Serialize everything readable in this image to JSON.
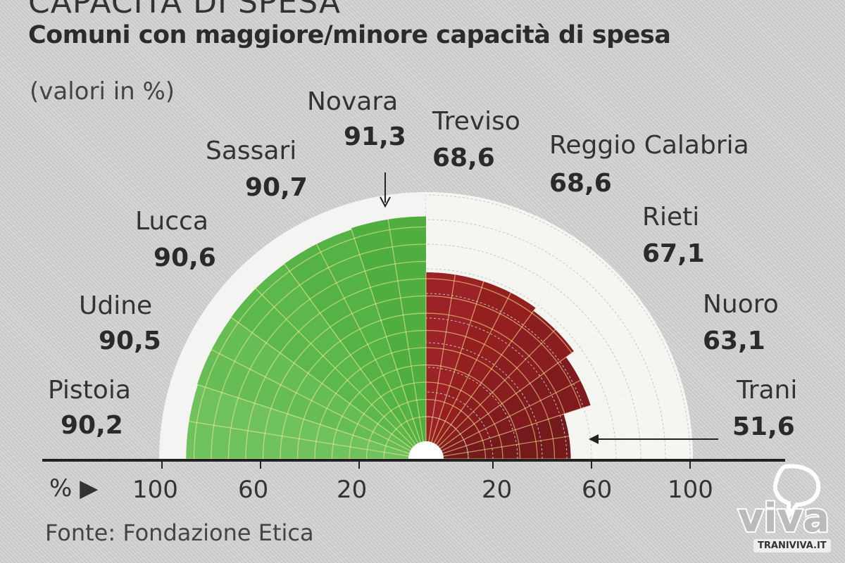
{
  "header": {
    "kicker": "CAPACITÀ DI SPESA",
    "title": "Comuni con maggiore/minore capacità di spesa",
    "subtitle": "(valori in %)"
  },
  "chart_data": {
    "type": "bar",
    "subtype": "polar half-rose (back-to-back semicircle)",
    "title": "Comuni con maggiore/minore capacità di spesa",
    "subtitle": "(valori in %)",
    "axis_unit": "%",
    "rlim": [
      0,
      100
    ],
    "tick_labels_left": [
      "100",
      "60",
      "20"
    ],
    "tick_labels_right": [
      "20",
      "60",
      "100"
    ],
    "grid": true,
    "series": [
      {
        "name": "maggiore",
        "color": "#5bb34a",
        "categories": [
          "Novara",
          "Sassari",
          "Lucca",
          "Udine",
          "Pistoia"
        ],
        "values": [
          91.3,
          90.7,
          90.6,
          90.5,
          90.2
        ],
        "labels": [
          "91,3",
          "90,7",
          "90,6",
          "90,5",
          "90,2"
        ]
      },
      {
        "name": "minore",
        "color": "#8e1f22",
        "categories": [
          "Treviso",
          "Reggio Calabria",
          "Rieti",
          "Nuoro",
          "Trani"
        ],
        "values": [
          68.6,
          68.6,
          67.1,
          63.1,
          51.6
        ],
        "labels": [
          "68,6",
          "68,6",
          "67,1",
          "63,1",
          "51,6"
        ]
      }
    ]
  },
  "source": "Fonte: Fondazione Etica",
  "watermark": {
    "logo": "viva",
    "site": "TRANIVIVA.IT"
  }
}
